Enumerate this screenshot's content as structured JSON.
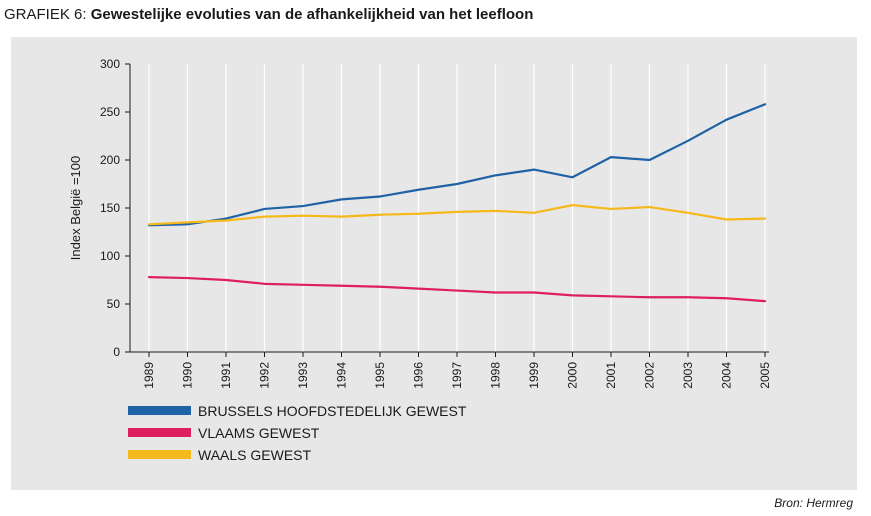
{
  "header": {
    "prefix": "GRAFIEK 6: ",
    "title": "Gewestelijke evoluties van de afhankelijkheid van het leefloon"
  },
  "source": "Bron: Hermreg",
  "colors": {
    "panel_bg": "#e7e7e7",
    "brussels": "#1f62a6",
    "vlaams": "#de1f5d",
    "waals": "#f6b91b"
  },
  "chart_data": {
    "type": "line",
    "title": "",
    "xlabel": "",
    "ylabel": "Index België =100",
    "ylim": [
      0,
      300
    ],
    "yticks": [
      0,
      50,
      100,
      150,
      200,
      250,
      300
    ],
    "ytick_labels": [
      "0",
      "50",
      "100",
      "150",
      "200",
      "250",
      "300"
    ],
    "grid": "vertical lines at each year",
    "legend_position": "bottom-left",
    "categories": [
      "1989",
      "1990",
      "1991",
      "1992",
      "1993",
      "1994",
      "1995",
      "1996",
      "1997",
      "1998",
      "1999",
      "2000",
      "2001",
      "2002",
      "2003",
      "2004",
      "2005"
    ],
    "series": [
      {
        "name": "BRUSSELS HOOFDSTEDELIJK GEWEST",
        "color": "#1f62a6",
        "values": [
          132,
          133,
          139,
          149,
          152,
          159,
          162,
          169,
          175,
          184,
          190,
          182,
          203,
          200,
          220,
          242,
          258
        ]
      },
      {
        "name": "VLAAMS GEWEST",
        "color": "#de1f5d",
        "values": [
          78,
          77,
          75,
          71,
          70,
          69,
          68,
          66,
          64,
          62,
          62,
          59,
          58,
          57,
          57,
          56,
          53
        ]
      },
      {
        "name": "WAALS GEWEST",
        "color": "#f6b91b",
        "values": [
          133,
          135,
          137,
          141,
          142,
          141,
          143,
          144,
          146,
          147,
          145,
          153,
          149,
          151,
          145,
          138,
          139
        ]
      }
    ]
  }
}
